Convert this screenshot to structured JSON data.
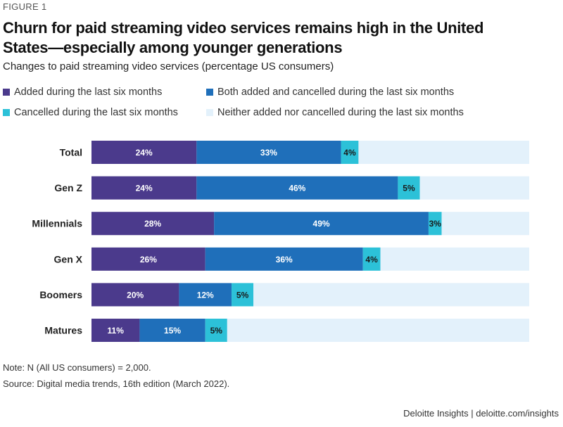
{
  "figure_label": "FIGURE 1",
  "title": "Churn for paid streaming video services remains high in the United States—especially among younger generations",
  "subtitle": "Changes to paid streaming video services (percentage US consumers)",
  "note": "Note: N (All US consumers) = 2,000.",
  "source": "Source: Digital media trends, 16th edition (March 2022).",
  "branding": "Deloitte Insights | deloitte.com/insights",
  "colors": {
    "added": "#4b3a8c",
    "both": "#1f6fba",
    "cancelled": "#2cc1d8",
    "neither": "#e3f1fb",
    "label_light": "#ffffff",
    "label_dark": "#1a1a1a"
  },
  "chart_data": {
    "type": "bar",
    "orientation": "horizontal",
    "stacked": true,
    "unit": "%",
    "xlim": [
      0,
      100
    ],
    "grid": false,
    "legend_position": "top",
    "categories": [
      "Total",
      "Gen Z",
      "Millennials",
      "Gen X",
      "Boomers",
      "Matures"
    ],
    "series": [
      {
        "name": "Added during the last six months",
        "key": "added",
        "values": [
          24,
          24,
          28,
          26,
          20,
          11
        ],
        "labels": [
          "24%",
          "24%",
          "28%",
          "26%",
          "20%",
          "11%"
        ]
      },
      {
        "name": "Both added and cancelled during the last six months",
        "key": "both",
        "values": [
          33,
          46,
          49,
          36,
          12,
          15
        ],
        "labels": [
          "33%",
          "46%",
          "49%",
          "36%",
          "12%",
          "15%"
        ]
      },
      {
        "name": "Cancelled during the last six months",
        "key": "cancelled",
        "values": [
          4,
          5,
          3,
          4,
          5,
          5
        ],
        "labels": [
          "4%",
          "5%",
          "3%",
          "4%",
          "5%",
          "5%"
        ]
      },
      {
        "name": "Neither added nor cancelled during the last six months",
        "key": "neither",
        "values": [
          39,
          25,
          20,
          34,
          63,
          69
        ]
      }
    ]
  }
}
